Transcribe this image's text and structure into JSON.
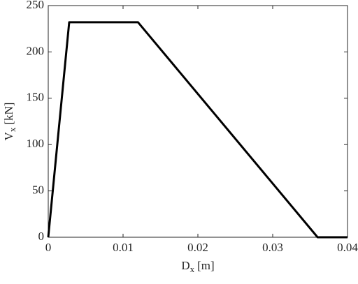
{
  "chart_data": {
    "type": "line",
    "x_label": {
      "base": "D",
      "sub": "x",
      "unit": "[m]"
    },
    "y_label": {
      "base": "V",
      "sub": "x",
      "unit": "[kN]"
    },
    "x": [
      0,
      0.0028,
      0.012,
      0.036,
      0.04
    ],
    "series": [
      {
        "color": "#000000",
        "values": [
          0,
          232,
          232,
          0,
          0
        ]
      }
    ],
    "xlim": [
      0,
      0.04
    ],
    "xticks": [
      0,
      0.01,
      0.02,
      0.03,
      0.04
    ],
    "ylim": [
      0,
      250
    ],
    "yticks": [
      0,
      50,
      100,
      150,
      200,
      250
    ],
    "grid": false
  }
}
